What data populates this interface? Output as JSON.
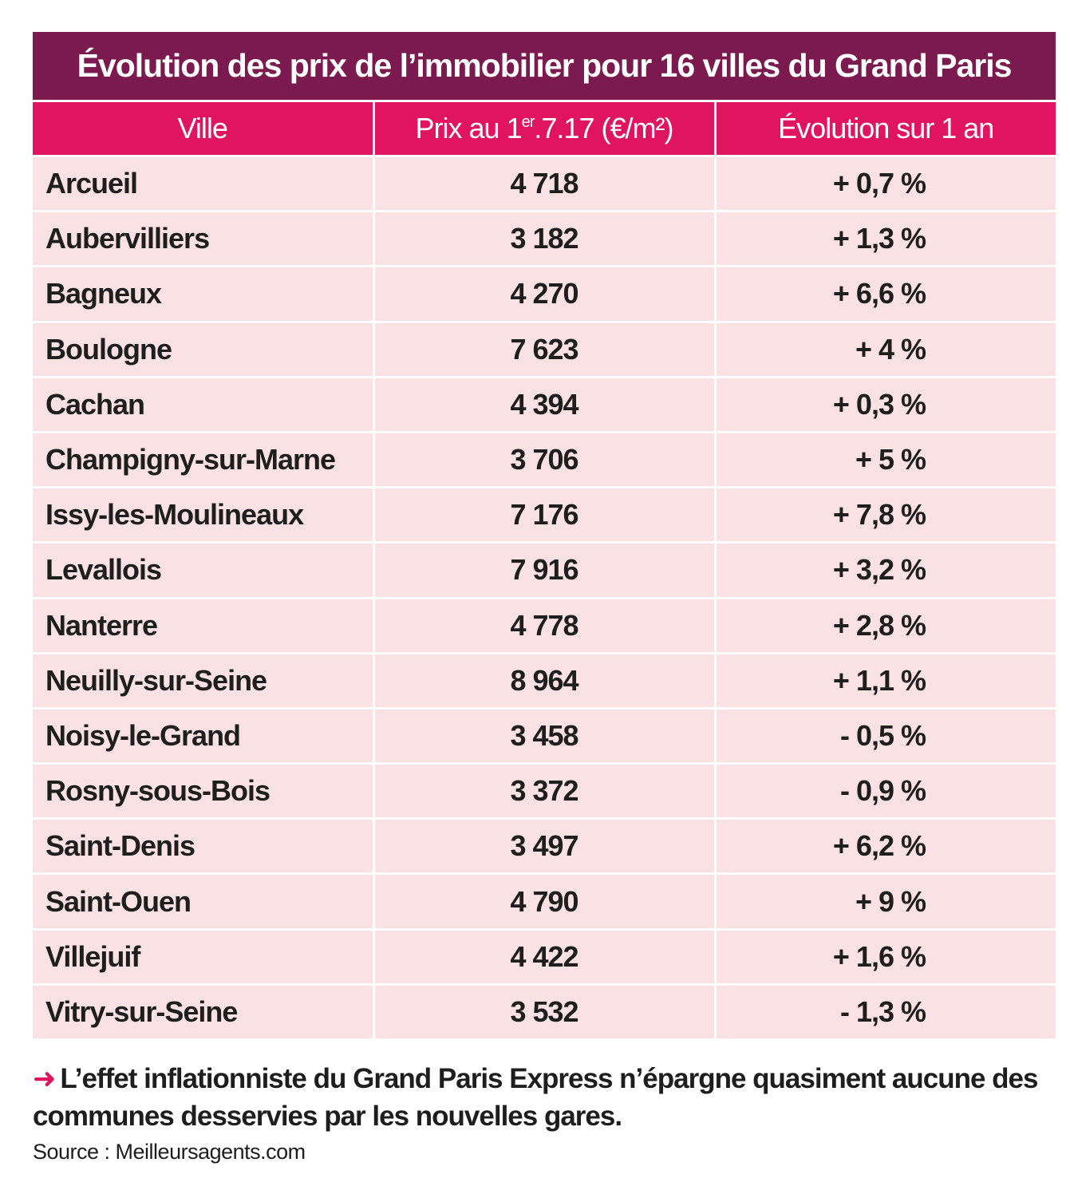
{
  "title": "Évolution des prix de l’immobilier pour 16 villes du Grand Paris",
  "columns": {
    "ville": "Ville",
    "prix_prefix": "Prix au 1",
    "prix_sup": "er",
    "prix_suffix": ".7.17 (€/m²)",
    "evolution": "Évolution sur 1 an"
  },
  "rows": [
    {
      "ville": "Arcueil",
      "prix": "4 718",
      "evolution": "+ 0,7 %"
    },
    {
      "ville": "Aubervilliers",
      "prix": "3 182",
      "evolution": "+ 1,3 %"
    },
    {
      "ville": "Bagneux",
      "prix": "4 270",
      "evolution": "+ 6,6 %"
    },
    {
      "ville": "Boulogne",
      "prix": "7 623",
      "evolution": "+ 4 %"
    },
    {
      "ville": "Cachan",
      "prix": "4 394",
      "evolution": "+ 0,3 %"
    },
    {
      "ville": "Champigny-sur-Marne",
      "prix": "3 706",
      "evolution": "+ 5 %"
    },
    {
      "ville": "Issy-les-Moulineaux",
      "prix": "7 176",
      "evolution": "+ 7,8 %"
    },
    {
      "ville": "Levallois",
      "prix": "7 916",
      "evolution": "+ 3,2 %"
    },
    {
      "ville": "Nanterre",
      "prix": "4 778",
      "evolution": "+ 2,8 %"
    },
    {
      "ville": "Neuilly-sur-Seine",
      "prix": "8 964",
      "evolution": "+ 1,1 %"
    },
    {
      "ville": "Noisy-le-Grand",
      "prix": "3 458",
      "evolution": "- 0,5 %"
    },
    {
      "ville": "Rosny-sous-Bois",
      "prix": "3 372",
      "evolution": "- 0,9 %"
    },
    {
      "ville": "Saint-Denis",
      "prix": "3 497",
      "evolution": "+ 6,2 %"
    },
    {
      "ville": "Saint-Ouen",
      "prix": "4 790",
      "evolution": "+ 9 %"
    },
    {
      "ville": "Villejuif",
      "prix": "4 422",
      "evolution": "+ 1,6 %"
    },
    {
      "ville": "Vitry-sur-Seine",
      "prix": "3 532",
      "evolution": "- 1,3 %"
    }
  ],
  "note": {
    "icon": "arrow-right-icon",
    "text": "L’effet inflationniste du Grand Paris Express n’épargne quasiment aucune des communes desservies par les nouvelles gares."
  },
  "source": "Source : Meilleursagents.com",
  "colors": {
    "title_bg": "#7a1a4e",
    "header_bg": "#e0145f",
    "row_bg": "#f9e1e4",
    "accent": "#e0145f"
  }
}
